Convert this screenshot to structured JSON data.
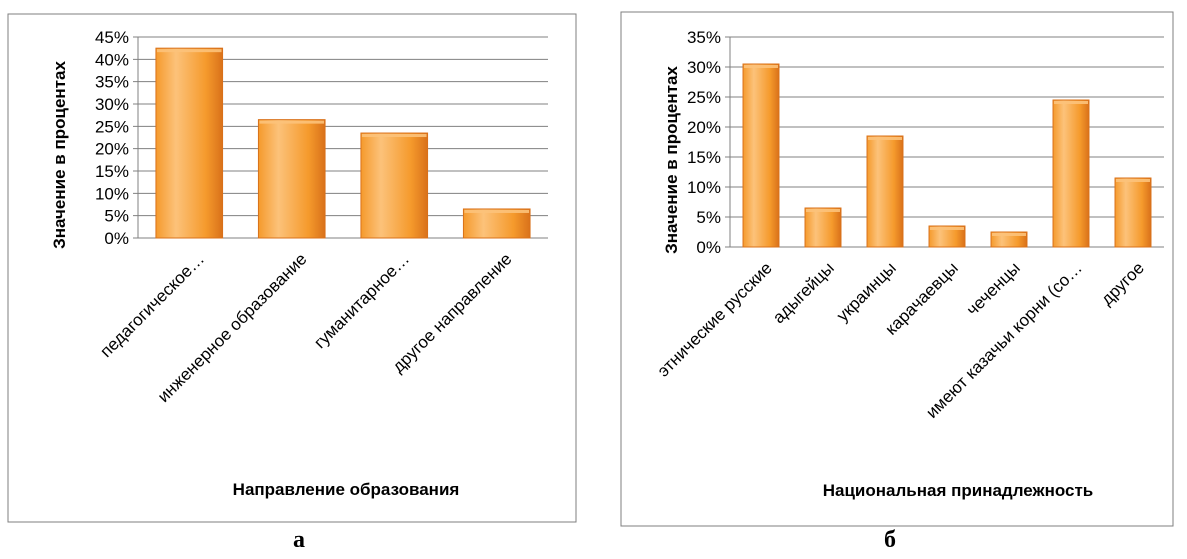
{
  "colors": {
    "bar_light": "#FCC27A",
    "bar_mid": "#F59A2C",
    "bar_dark": "#D9711A",
    "frame": "#7F7F7F",
    "grid": "#808080",
    "text": "#000000"
  },
  "panel_labels": [
    "а",
    "б"
  ],
  "chart_data": [
    {
      "type": "bar",
      "categories": [
        "педагогическое…",
        "инженерное образование",
        "гуманитарное…",
        "другое направление"
      ],
      "values": [
        42.5,
        26.5,
        23.5,
        6.5
      ],
      "xlabel": "Направление образования",
      "ylabel": "Значение в процентах",
      "yticks": [
        "0%",
        "5%",
        "10%",
        "15%",
        "20%",
        "25%",
        "30%",
        "35%",
        "40%",
        "45%"
      ],
      "ylim": [
        0,
        45
      ],
      "unit": "%",
      "grid": true,
      "legend": "none"
    },
    {
      "type": "bar",
      "categories": [
        "этнические русские",
        "адыгейцы",
        "украинцы",
        "карачаевцы",
        "чеченцы",
        "имеют казачьи корни (со…",
        "другое"
      ],
      "values": [
        30.5,
        6.5,
        18.5,
        3.5,
        2.5,
        24.5,
        11.5
      ],
      "xlabel": "Национальная принадлежность",
      "ylabel": "Значение в процентах",
      "yticks": [
        "0%",
        "5%",
        "10%",
        "15%",
        "20%",
        "25%",
        "30%",
        "35%"
      ],
      "ylim": [
        0,
        35
      ],
      "unit": "%",
      "grid": true,
      "legend": "none"
    }
  ]
}
